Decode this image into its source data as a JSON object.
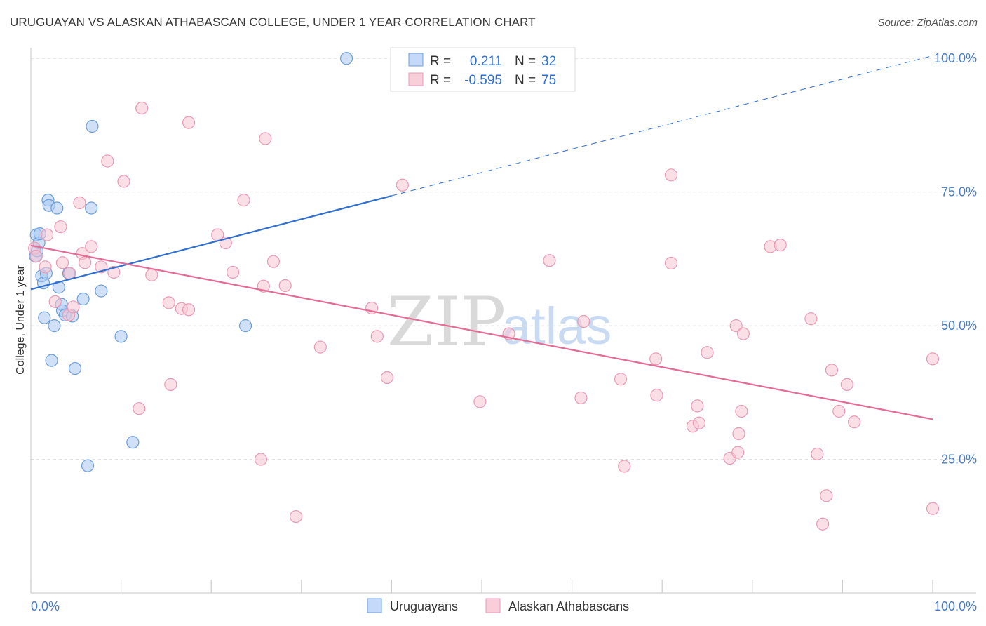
{
  "header": {
    "title": "URUGUAYAN VS ALASKAN ATHABASCAN COLLEGE, UNDER 1 YEAR CORRELATION CHART",
    "source": "Source: ZipAtlas.com"
  },
  "watermark": {
    "zip": "ZIP",
    "atlas": "atlas"
  },
  "chart_data": {
    "type": "scatter",
    "title": "URUGUAYAN VS ALASKAN ATHABASCAN COLLEGE, UNDER 1 YEAR CORRELATION CHART",
    "xlabel": "",
    "ylabel": "College, Under 1 year",
    "xlim": [
      0,
      100
    ],
    "ylim": [
      0,
      102
    ],
    "x_tick_labels": [
      "0.0%",
      "100.0%"
    ],
    "y_ticks": [
      {
        "value": 25,
        "label": "25.0%"
      },
      {
        "value": 50,
        "label": "50.0%"
      },
      {
        "value": 75,
        "label": "75.0%"
      },
      {
        "value": 100,
        "label": "100.0%"
      }
    ],
    "grid": true,
    "legend": {
      "placement": "top-center",
      "rows": [
        {
          "r_label": "R =",
          "r_value": "0.211",
          "n_label": "N =",
          "n_value": "32"
        },
        {
          "r_label": "R =",
          "r_value": "-0.595",
          "n_label": "N =",
          "n_value": "75"
        }
      ]
    },
    "series": [
      {
        "name": "Uruguayans",
        "color": "#a9c8f0",
        "stroke": "#6d9fdc",
        "line_color": "#2f6fd0",
        "trend": {
          "x0": 0,
          "y0": 56.8,
          "x1": 40,
          "y1": 74.3,
          "dash_to_x": 100,
          "dash_to_y": 100.5
        },
        "points": [
          [
            0.5,
            63.0
          ],
          [
            0.6,
            67.0
          ],
          [
            0.7,
            64.0
          ],
          [
            0.9,
            65.5
          ],
          [
            1.0,
            67.2
          ],
          [
            1.2,
            59.3
          ],
          [
            1.4,
            58.0
          ],
          [
            1.5,
            51.5
          ],
          [
            1.7,
            59.8
          ],
          [
            1.9,
            73.5
          ],
          [
            2.0,
            72.5
          ],
          [
            2.3,
            43.5
          ],
          [
            2.6,
            50.0
          ],
          [
            2.9,
            72.0
          ],
          [
            3.1,
            57.2
          ],
          [
            3.4,
            54.0
          ],
          [
            3.5,
            52.8
          ],
          [
            3.8,
            52.0
          ],
          [
            4.2,
            59.8
          ],
          [
            4.6,
            51.8
          ],
          [
            4.9,
            42.0
          ],
          [
            5.8,
            55.0
          ],
          [
            6.3,
            23.8
          ],
          [
            6.8,
            87.3
          ],
          [
            6.7,
            72.0
          ],
          [
            7.8,
            56.5
          ],
          [
            10.0,
            48.0
          ],
          [
            11.3,
            28.2
          ],
          [
            23.8,
            50.0
          ],
          [
            35.0,
            100.0
          ]
        ]
      },
      {
        "name": "Alaskan Athabascans",
        "color": "#f7c4d3",
        "stroke": "#e99ab4",
        "line_color": "#e56b94",
        "trend": {
          "x0": 0,
          "y0": 65.0,
          "x1": 100,
          "y1": 32.5
        },
        "points": [
          [
            0.4,
            64.5
          ],
          [
            0.6,
            63.0
          ],
          [
            1.6,
            61.0
          ],
          [
            1.8,
            67.0
          ],
          [
            2.7,
            54.5
          ],
          [
            3.3,
            68.5
          ],
          [
            3.5,
            61.8
          ],
          [
            4.2,
            52.0
          ],
          [
            4.3,
            59.8
          ],
          [
            4.7,
            53.5
          ],
          [
            5.4,
            73.0
          ],
          [
            5.7,
            63.5
          ],
          [
            6.0,
            61.8
          ],
          [
            6.7,
            64.8
          ],
          [
            7.8,
            61.0
          ],
          [
            8.5,
            80.8
          ],
          [
            9.2,
            60.0
          ],
          [
            10.3,
            77.0
          ],
          [
            12.0,
            34.5
          ],
          [
            12.3,
            90.7
          ],
          [
            13.4,
            59.5
          ],
          [
            15.3,
            54.3
          ],
          [
            15.5,
            39.0
          ],
          [
            16.7,
            53.2
          ],
          [
            17.5,
            53.0
          ],
          [
            17.5,
            88.0
          ],
          [
            20.7,
            67.0
          ],
          [
            21.6,
            65.5
          ],
          [
            22.4,
            60.0
          ],
          [
            23.6,
            73.5
          ],
          [
            25.5,
            25.0
          ],
          [
            25.8,
            57.4
          ],
          [
            26.0,
            85.0
          ],
          [
            26.9,
            62.0
          ],
          [
            28.2,
            57.5
          ],
          [
            29.4,
            14.3
          ],
          [
            32.1,
            46.0
          ],
          [
            37.8,
            53.3
          ],
          [
            38.4,
            48.0
          ],
          [
            39.5,
            40.3
          ],
          [
            41.2,
            76.3
          ],
          [
            49.8,
            35.8
          ],
          [
            53.0,
            48.5
          ],
          [
            57.5,
            62.2
          ],
          [
            61.0,
            36.5
          ],
          [
            61.3,
            50.8
          ],
          [
            65.4,
            40.0
          ],
          [
            65.8,
            23.7
          ],
          [
            69.3,
            43.8
          ],
          [
            69.4,
            37.0
          ],
          [
            71.0,
            78.2
          ],
          [
            71.0,
            61.7
          ],
          [
            73.4,
            31.2
          ],
          [
            73.9,
            35.0
          ],
          [
            74.1,
            31.8
          ],
          [
            75.0,
            45.0
          ],
          [
            77.5,
            25.2
          ],
          [
            78.4,
            26.3
          ],
          [
            78.2,
            50.0
          ],
          [
            78.8,
            34.0
          ],
          [
            78.5,
            29.8
          ],
          [
            79.0,
            48.5
          ],
          [
            82.0,
            64.8
          ],
          [
            83.1,
            65.1
          ],
          [
            86.5,
            51.3
          ],
          [
            87.2,
            26.0
          ],
          [
            87.8,
            12.9
          ],
          [
            88.2,
            18.2
          ],
          [
            88.8,
            41.7
          ],
          [
            89.6,
            34.0
          ],
          [
            90.5,
            39.0
          ],
          [
            91.3,
            32.0
          ],
          [
            100.0,
            15.8
          ],
          [
            100.0,
            43.8
          ]
        ]
      }
    ]
  }
}
